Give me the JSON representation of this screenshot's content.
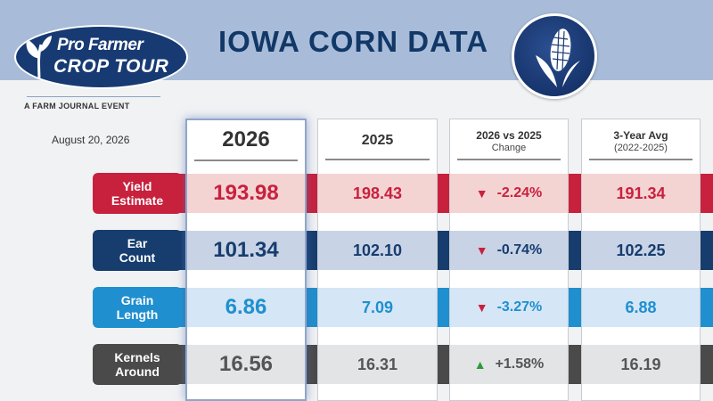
{
  "header": {
    "title": "IOWA CORN DATA",
    "logo_line1": "Pro Farmer",
    "logo_line2": "CROP TOUR",
    "tagline": "A FARM JOURNAL EVENT",
    "date": "August 20, 2026"
  },
  "columns": [
    {
      "line1": "2026",
      "line2": ""
    },
    {
      "line1": "2025",
      "line2": ""
    },
    {
      "line1": "2026 vs 2025",
      "line2": "Change"
    },
    {
      "line1": "3-Year Avg",
      "line2": "(2022-2025)"
    }
  ],
  "rows": [
    {
      "label_line1": "Yield",
      "label_line2": "Estimate",
      "v2026": "193.98",
      "v2025": "198.43",
      "change": "-2.24%",
      "change_dir": "down",
      "avg": "191.34",
      "color": "#c8213d",
      "band": "#f4d3d3",
      "value_color": "#c8213d"
    },
    {
      "label_line1": "Ear",
      "label_line2": "Count",
      "v2026": "101.34",
      "v2025": "102.10",
      "change": "-0.74%",
      "change_dir": "down",
      "avg": "102.25",
      "color": "#163d6e",
      "band": "#c9d3e6",
      "value_color": "#163d6e"
    },
    {
      "label_line1": "Grain",
      "label_line2": "Length",
      "v2026": "6.86",
      "v2025": "7.09",
      "change": "-3.27%",
      "change_dir": "down",
      "avg": "6.88",
      "color": "#1f8fcf",
      "band": "#d5e6f6",
      "value_color": "#1f8fcf"
    },
    {
      "label_line1": "Kernels",
      "label_line2": "Around",
      "v2026": "16.56",
      "v2025": "16.31",
      "change": "+1.58%",
      "change_dir": "up",
      "avg": "16.19",
      "color": "#4a4a4a",
      "band": "#e3e4e6",
      "value_color": "#555555"
    }
  ],
  "colors": {
    "down_arrow": "#c8213d",
    "up_arrow": "#2c9a3c",
    "navy": "#173a73"
  },
  "icons": {
    "logo": "leaf-icon",
    "corn": "corn-icon",
    "down": "down-triangle-icon",
    "up": "up-triangle-icon"
  }
}
